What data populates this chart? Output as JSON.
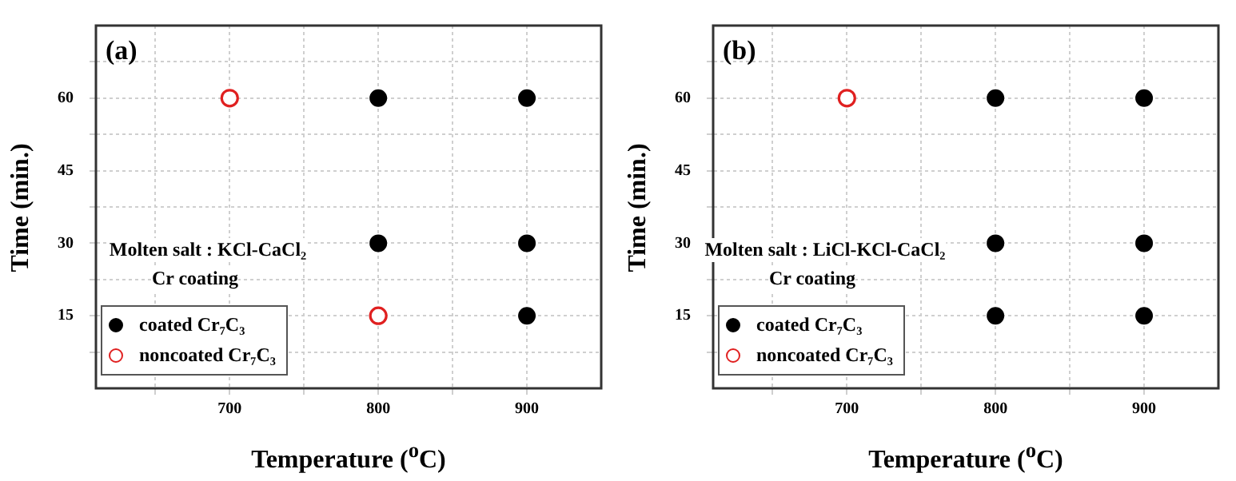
{
  "chart_data": [
    {
      "type": "scatter",
      "annotations": [
        "(a)",
        "Molten salt : KCl-CaCl₂",
        "Cr coating"
      ],
      "xlabel": "Temperature ($^{o}$C)",
      "ylabel": "Time (min.)",
      "xlim": [
        610,
        950
      ],
      "xticks": [
        {
          "value": 650,
          "label": null
        },
        700,
        {
          "value": 750,
          "label": null
        },
        800,
        {
          "value": 850,
          "label": null
        },
        900
      ],
      "ylim": [
        0,
        75
      ],
      "yticks": [
        {
          "value": 7.5,
          "label": null
        },
        15,
        {
          "value": 22.5,
          "label": null
        },
        30,
        {
          "value": 37.5,
          "label": null
        },
        45,
        {
          "value": 52.5,
          "label": null
        },
        60,
        {
          "value": 67.5,
          "label": null
        }
      ],
      "grid": true,
      "legend": "bottom left",
      "marker": "circle",
      "series": [
        {
          "name": "coated Cr₇C₃",
          "color": "#000000",
          "x": [
            800,
            900,
            800,
            900,
            900
          ],
          "values": [
            60,
            60,
            30,
            30,
            15
          ]
        },
        {
          "name": "noncoated Cr₇C₃",
          "color": "#e02020",
          "x": [
            700,
            800
          ],
          "values": [
            60,
            15
          ]
        }
      ]
    },
    {
      "type": "scatter",
      "annotations": [
        "(b)",
        "Molten salt : LiCl-KCl-CaCl₂",
        "Cr coating"
      ],
      "xlabel": "Temperature ($^{o}$C)",
      "ylabel": "Time (min.)",
      "xlim": [
        610,
        950
      ],
      "xticks": [
        {
          "value": 650,
          "label": null
        },
        700,
        {
          "value": 750,
          "label": null
        },
        800,
        {
          "value": 850,
          "label": null
        },
        900
      ],
      "ylim": [
        0,
        75
      ],
      "yticks": [
        {
          "value": 7.5,
          "label": null
        },
        15,
        {
          "value": 22.5,
          "label": null
        },
        30,
        {
          "value": 37.5,
          "label": null
        },
        45,
        {
          "value": 52.5,
          "label": null
        },
        60,
        {
          "value": 67.5,
          "label": null
        }
      ],
      "grid": true,
      "legend": "bottom left",
      "marker": "circle",
      "series": [
        {
          "name": "coated Cr₇C₃",
          "color": "#000000",
          "x": [
            800,
            900,
            800,
            900,
            800,
            900
          ],
          "values": [
            60,
            60,
            30,
            30,
            15,
            15
          ]
        },
        {
          "name": "noncoated Cr₇C₃",
          "color": "#e02020",
          "x": [
            700
          ],
          "values": [
            60
          ]
        }
      ]
    }
  ]
}
